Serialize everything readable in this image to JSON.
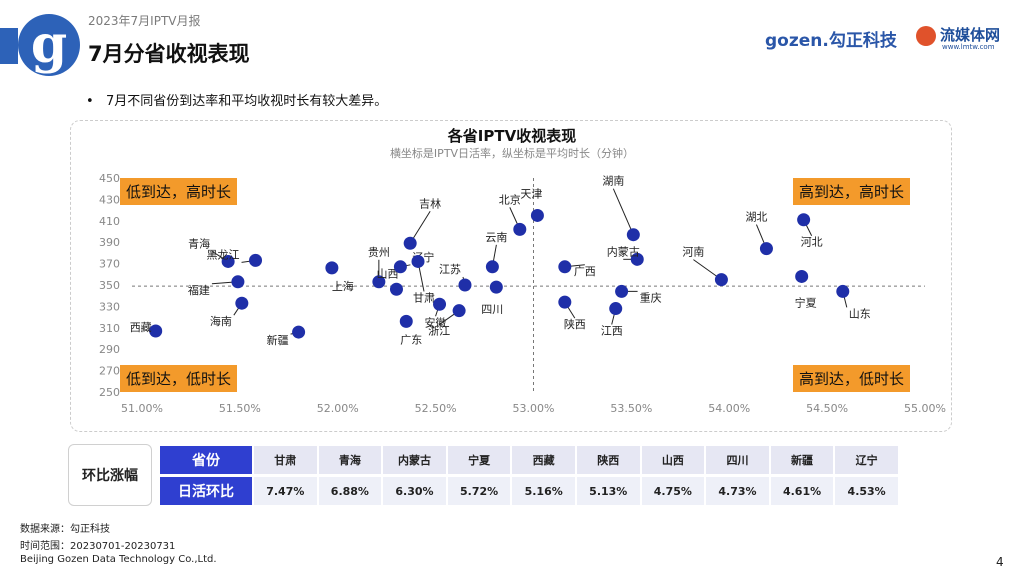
{
  "header": {
    "report_name": "2023年7月IPTV月报",
    "title": "7月分省收视表现",
    "logo_letter": "g",
    "brand_left": "gozen.勾正科技",
    "brand_right": "流媒体网",
    "brand_right_sub": "www.lmtw.com"
  },
  "bullet": "7月不同省份到达率和平均收视时长有较大差异。",
  "chart_data": {
    "type": "scatter",
    "title": "各省IPTV收视表现",
    "subtitle": "横坐标是IPTV日活率，纵坐标是平均时长（分钟）",
    "xlabel": "IPTV日活率",
    "ylabel": "平均时长（分钟）",
    "xlim": [
      51.0,
      55.0
    ],
    "ylim": [
      250,
      450
    ],
    "x_ticks": [
      "51.00%",
      "51.50%",
      "52.00%",
      "52.50%",
      "53.00%",
      "53.50%",
      "54.00%",
      "54.50%",
      "55.00%"
    ],
    "y_ticks": [
      "250",
      "270",
      "290",
      "310",
      "330",
      "350",
      "370",
      "390",
      "410",
      "430",
      "450"
    ],
    "x_ref": 53.0,
    "y_ref": 349,
    "color": "#1f2fa8",
    "points": [
      {
        "name": "西藏",
        "x": 51.07,
        "y": 307
      },
      {
        "name": "青海",
        "x": 51.44,
        "y": 372
      },
      {
        "name": "黑龙江",
        "x": 51.58,
        "y": 373
      },
      {
        "name": "福建",
        "x": 51.49,
        "y": 353
      },
      {
        "name": "海南",
        "x": 51.51,
        "y": 333
      },
      {
        "name": "新疆",
        "x": 51.8,
        "y": 306
      },
      {
        "name": "上海",
        "x": 51.97,
        "y": 366
      },
      {
        "name": "贵州",
        "x": 52.21,
        "y": 353
      },
      {
        "name": "山西",
        "x": 52.3,
        "y": 346
      },
      {
        "name": "辽宁",
        "x": 52.32,
        "y": 367
      },
      {
        "name": "吉林",
        "x": 52.37,
        "y": 389
      },
      {
        "name": "广东",
        "x": 52.35,
        "y": 316
      },
      {
        "name": "甘肃",
        "x": 52.41,
        "y": 372
      },
      {
        "name": "安徽",
        "x": 52.52,
        "y": 332
      },
      {
        "name": "江苏",
        "x": 52.65,
        "y": 350
      },
      {
        "name": "浙江",
        "x": 52.62,
        "y": 326
      },
      {
        "name": "云南",
        "x": 52.79,
        "y": 367
      },
      {
        "name": "四川",
        "x": 52.81,
        "y": 348
      },
      {
        "name": "北京",
        "x": 52.93,
        "y": 402
      },
      {
        "name": "天津",
        "x": 53.02,
        "y": 415
      },
      {
        "name": "广西",
        "x": 53.16,
        "y": 367
      },
      {
        "name": "陕西",
        "x": 53.16,
        "y": 334
      },
      {
        "name": "湖南",
        "x": 53.51,
        "y": 397
      },
      {
        "name": "内蒙古",
        "x": 53.53,
        "y": 374
      },
      {
        "name": "重庆",
        "x": 53.45,
        "y": 344
      },
      {
        "name": "江西",
        "x": 53.42,
        "y": 328
      },
      {
        "name": "河南",
        "x": 53.96,
        "y": 355
      },
      {
        "name": "湖北",
        "x": 54.19,
        "y": 384
      },
      {
        "name": "河北",
        "x": 54.38,
        "y": 411
      },
      {
        "name": "宁夏",
        "x": 54.37,
        "y": 358
      },
      {
        "name": "山东",
        "x": 54.58,
        "y": 344
      }
    ],
    "quadrants": {
      "top_left": "低到达，高时长",
      "top_right": "高到达，高时长",
      "bottom_left": "低到达，低时长",
      "bottom_right": "高到达，低时长"
    }
  },
  "table": {
    "label": "环比涨幅",
    "row_headers": [
      "省份",
      "日活环比"
    ],
    "provinces": [
      "甘肃",
      "青海",
      "内蒙古",
      "宁夏",
      "西藏",
      "陕西",
      "山西",
      "四川",
      "新疆",
      "辽宁"
    ],
    "values": [
      "7.47%",
      "6.88%",
      "6.30%",
      "5.72%",
      "5.16%",
      "5.13%",
      "4.75%",
      "4.73%",
      "4.61%",
      "4.53%"
    ]
  },
  "footer": {
    "source": "数据来源：勾正科技",
    "period": "时间范围：20230701-20230731",
    "company": "Beijing Gozen Data Technology Co.,Ltd.",
    "page": "4"
  }
}
